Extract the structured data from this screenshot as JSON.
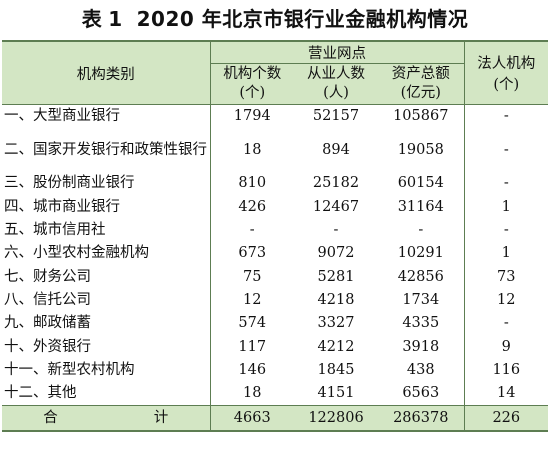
{
  "title": {
    "prefix": "表",
    "number": "1",
    "text": "2020 年北京市银行业金融机构情况"
  },
  "headers": {
    "category": "机构类别",
    "branch_group": "营业网点",
    "institution_count": "机构个数",
    "institution_count_unit": "(个)",
    "employees": "从业人数",
    "employees_unit": "(人)",
    "assets": "资产总额",
    "assets_unit": "(亿元)",
    "legal_entities": "法人机构",
    "legal_entities_unit": "(个)"
  },
  "rows": [
    {
      "name": "一、大型商业银行",
      "count": "1794",
      "employees": "52157",
      "assets": "105867",
      "legal": "-"
    },
    {
      "name": "二、国家开发银行和政策性银行",
      "count": "18",
      "employees": "894",
      "assets": "19058",
      "legal": "-"
    },
    {
      "name": "三、股份制商业银行",
      "count": "810",
      "employees": "25182",
      "assets": "60154",
      "legal": "-"
    },
    {
      "name": "四、城市商业银行",
      "count": "426",
      "employees": "12467",
      "assets": "31164",
      "legal": "1"
    },
    {
      "name": "五、城市信用社",
      "count": "-",
      "employees": "-",
      "assets": "-",
      "legal": "-"
    },
    {
      "name": "六、小型农村金融机构",
      "count": "673",
      "employees": "9072",
      "assets": "10291",
      "legal": "1"
    },
    {
      "name": "七、财务公司",
      "count": "75",
      "employees": "5281",
      "assets": "42856",
      "legal": "73"
    },
    {
      "name": "八、信托公司",
      "count": "12",
      "employees": "4218",
      "assets": "1734",
      "legal": "12"
    },
    {
      "name": "九、邮政储蓄",
      "count": "574",
      "employees": "3327",
      "assets": "4335",
      "legal": "-"
    },
    {
      "name": "十、外资银行",
      "count": "117",
      "employees": "4212",
      "assets": "3918",
      "legal": "9"
    },
    {
      "name": "十一、新型农村机构",
      "count": "146",
      "employees": "1845",
      "assets": "438",
      "legal": "116"
    },
    {
      "name": "十二、其他",
      "count": "18",
      "employees": "4151",
      "assets": "6563",
      "legal": "14"
    }
  ],
  "total": {
    "label_left": "合",
    "label_right": "计",
    "count": "4663",
    "employees": "122806",
    "assets": "286378",
    "legal": "226"
  },
  "colors": {
    "header_bg": "#d3e6c4",
    "rule": "#5d7d52"
  }
}
